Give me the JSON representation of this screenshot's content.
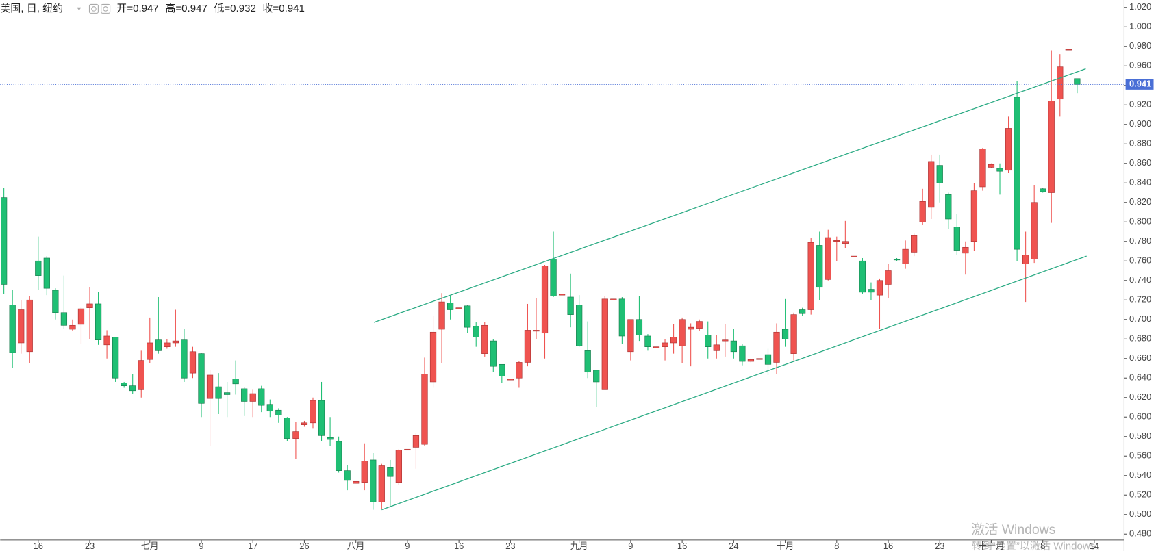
{
  "chart_data": {
    "type": "candlestick",
    "title": "美国, 日, 纽约",
    "ohlc_legend": [
      "开=0.947",
      "高=0.947",
      "低=0.932",
      "收=0.941"
    ],
    "up_color": "#ef5350",
    "down_color": "#1fbf74",
    "categories": [
      null,
      null,
      null,
      null,
      "16",
      null,
      null,
      null,
      null,
      null,
      "23",
      null,
      null,
      null,
      null,
      null,
      null,
      "七月",
      null,
      null,
      null,
      null,
      null,
      "9",
      null,
      null,
      null,
      null,
      null,
      "17",
      null,
      null,
      null,
      null,
      null,
      "26",
      null,
      null,
      null,
      null,
      null,
      "八月",
      null,
      null,
      null,
      null,
      null,
      "9",
      null,
      null,
      null,
      null,
      null,
      "16",
      null,
      null,
      null,
      null,
      null,
      "23",
      null,
      null,
      null,
      null,
      null,
      null,
      null,
      "九月",
      null,
      null,
      null,
      null,
      null,
      "9",
      null,
      null,
      null,
      null,
      null,
      "16",
      null,
      null,
      null,
      null,
      null,
      "24",
      null,
      null,
      null,
      null,
      null,
      "十月",
      null,
      null,
      null,
      null,
      null,
      "8",
      null,
      null,
      null,
      null,
      null,
      "16",
      null,
      null,
      null,
      null,
      null,
      "23",
      null,
      null,
      null,
      null,
      null,
      "十一月",
      null,
      null,
      null,
      null,
      null,
      "8",
      null,
      null,
      null,
      null,
      null,
      "14"
    ],
    "open": [
      0.825,
      0.715,
      0.676,
      0.667,
      0.76,
      0.763,
      0.73,
      0.707,
      0.69,
      0.695,
      0.712,
      0.716,
      0.674,
      0.682,
      0.635,
      0.632,
      0.628,
      0.659,
      0.679,
      0.672,
      0.676,
      0.679,
      0.645,
      0.665,
      0.619,
      0.631,
      0.625,
      0.639,
      0.629,
      0.616,
      0.629,
      0.613,
      0.607,
      0.599,
      0.578,
      0.592,
      0.594,
      0.617,
      0.579,
      0.575,
      0.545,
      0.532,
      0.533,
      0.556,
      0.513,
      0.548,
      0.533,
      0.566,
      0.569,
      0.572,
      0.636,
      0.69,
      0.717,
      0.711,
      0.714,
      0.693,
      0.665,
      0.678,
      0.654,
      0.638,
      0.64,
      0.656,
      0.688,
      0.686,
      0.762,
      0.725,
      0.723,
      0.715,
      0.668,
      0.648,
      0.628,
      0.72,
      0.721,
      0.667,
      0.7,
      0.683,
      0.671,
      0.672,
      0.676,
      0.673,
      0.69,
      0.691,
      0.684,
      0.668,
      0.678,
      0.678,
      0.673,
      0.657,
      0.659,
      0.664,
      0.656,
      0.69,
      0.665,
      0.71,
      0.71,
      0.776,
      0.741,
      0.78,
      0.778,
      0.764,
      0.76,
      0.731,
      0.725,
      0.736,
      0.762,
      0.757,
      0.769,
      0.8,
      0.815,
      0.858,
      0.828,
      0.795,
      0.768,
      0.78,
      0.836,
      0.856,
      0.855,
      0.853,
      0.928,
      0.757,
      0.762,
      0.834,
      0.83,
      0.926,
      0.977,
      0.947,
      null,
      null
    ],
    "high": [
      0.835,
      0.73,
      0.72,
      0.724,
      0.785,
      0.765,
      0.732,
      0.745,
      0.7,
      0.713,
      0.733,
      0.728,
      0.689,
      0.682,
      0.636,
      0.644,
      0.668,
      0.702,
      0.723,
      0.68,
      0.71,
      0.69,
      0.672,
      0.666,
      0.648,
      0.645,
      0.636,
      0.658,
      0.631,
      0.628,
      0.632,
      0.618,
      0.609,
      0.6,
      0.595,
      0.596,
      0.62,
      0.636,
      0.6,
      0.58,
      0.551,
      0.534,
      0.573,
      0.563,
      0.552,
      0.556,
      0.567,
      0.567,
      0.584,
      0.661,
      0.704,
      0.727,
      0.724,
      0.712,
      0.715,
      0.697,
      0.697,
      0.68,
      0.654,
      0.639,
      0.657,
      0.716,
      0.722,
      0.756,
      0.79,
      0.726,
      0.747,
      0.725,
      0.698,
      0.648,
      0.724,
      0.721,
      0.723,
      0.7,
      0.724,
      0.685,
      0.672,
      0.68,
      0.695,
      0.702,
      0.696,
      0.7,
      0.698,
      0.684,
      0.695,
      0.69,
      0.675,
      0.66,
      0.66,
      0.67,
      0.696,
      0.721,
      0.707,
      0.712,
      0.784,
      0.79,
      0.792,
      0.785,
      0.801,
      0.765,
      0.763,
      0.738,
      0.742,
      0.757,
      0.763,
      0.781,
      0.788,
      0.834,
      0.869,
      0.869,
      0.83,
      0.808,
      0.78,
      0.84,
      0.876,
      0.86,
      0.86,
      0.908,
      0.944,
      0.79,
      0.838,
      0.835,
      0.976,
      0.972,
      0.977,
      0.947,
      null,
      null
    ],
    "low": [
      0.726,
      0.65,
      0.665,
      0.655,
      0.73,
      0.725,
      0.7,
      0.69,
      0.688,
      0.675,
      0.68,
      0.674,
      0.66,
      0.636,
      0.63,
      0.624,
      0.62,
      0.655,
      0.665,
      0.67,
      0.672,
      0.636,
      0.64,
      0.6,
      0.57,
      0.603,
      0.6,
      0.623,
      0.601,
      0.6,
      0.605,
      0.6,
      0.594,
      0.575,
      0.557,
      0.59,
      0.588,
      0.575,
      0.57,
      0.543,
      0.525,
      0.532,
      0.525,
      0.505,
      0.506,
      0.508,
      0.53,
      0.566,
      0.547,
      0.57,
      0.63,
      0.655,
      0.7,
      0.711,
      0.686,
      0.672,
      0.662,
      0.646,
      0.635,
      0.638,
      0.63,
      0.652,
      0.68,
      0.66,
      0.723,
      0.725,
      0.692,
      0.672,
      0.64,
      0.61,
      0.628,
      0.72,
      0.675,
      0.658,
      0.678,
      0.668,
      0.671,
      0.658,
      0.665,
      0.655,
      0.652,
      0.688,
      0.66,
      0.66,
      0.662,
      0.66,
      0.653,
      0.656,
      0.659,
      0.643,
      0.644,
      0.672,
      0.658,
      0.704,
      0.705,
      0.72,
      0.74,
      0.76,
      0.773,
      0.764,
      0.726,
      0.72,
      0.69,
      0.722,
      0.76,
      0.752,
      0.765,
      0.797,
      0.803,
      0.82,
      0.793,
      0.766,
      0.746,
      0.77,
      0.832,
      0.855,
      0.828,
      0.85,
      0.76,
      0.718,
      0.758,
      0.83,
      0.799,
      0.908,
      0.977,
      0.932,
      null,
      null
    ],
    "close": [
      0.736,
      0.666,
      0.71,
      0.72,
      0.745,
      0.732,
      0.707,
      0.694,
      0.694,
      0.711,
      0.716,
      0.679,
      0.683,
      0.64,
      0.632,
      0.627,
      0.658,
      0.676,
      0.668,
      0.676,
      0.678,
      0.64,
      0.667,
      0.614,
      0.643,
      0.619,
      0.623,
      0.634,
      0.616,
      0.624,
      0.612,
      0.606,
      0.602,
      0.578,
      0.585,
      0.594,
      0.617,
      0.581,
      0.577,
      0.545,
      0.535,
      0.534,
      0.555,
      0.513,
      0.55,
      0.539,
      0.566,
      0.567,
      0.581,
      0.644,
      0.687,
      0.718,
      0.71,
      0.712,
      0.692,
      0.682,
      0.694,
      0.652,
      0.642,
      0.639,
      0.656,
      0.689,
      0.689,
      0.755,
      0.724,
      0.726,
      0.705,
      0.673,
      0.646,
      0.636,
      0.721,
      0.721,
      0.683,
      0.7,
      0.684,
      0.672,
      0.672,
      0.676,
      0.682,
      0.7,
      0.692,
      0.698,
      0.672,
      0.674,
      0.679,
      0.667,
      0.657,
      0.659,
      0.66,
      0.654,
      0.687,
      0.68,
      0.705,
      0.706,
      0.779,
      0.733,
      0.784,
      0.781,
      0.78,
      0.765,
      0.728,
      0.728,
      0.74,
      0.75,
      0.761,
      0.772,
      0.786,
      0.821,
      0.862,
      0.84,
      0.803,
      0.771,
      0.774,
      0.832,
      0.875,
      0.859,
      0.852,
      0.896,
      0.772,
      0.766,
      0.82,
      0.831,
      0.924,
      0.959,
      0.977,
      0.941,
      null,
      null
    ],
    "ylim": [
      0.48,
      1.02
    ],
    "yticks": [
      {
        "value": 0.48,
        "label": "0.480"
      },
      {
        "value": 0.5,
        "label": "0.500"
      },
      {
        "value": 0.52,
        "label": "0.520"
      },
      {
        "value": 0.54,
        "label": "0.540"
      },
      {
        "value": 0.56,
        "label": "0.560"
      },
      {
        "value": 0.58,
        "label": "0.580"
      },
      {
        "value": 0.6,
        "label": "0.600"
      },
      {
        "value": 0.62,
        "label": "0.620"
      },
      {
        "value": 0.64,
        "label": "0.640"
      },
      {
        "value": 0.66,
        "label": "0.660"
      },
      {
        "value": 0.68,
        "label": "0.680"
      },
      {
        "value": 0.7,
        "label": "0.700"
      },
      {
        "value": 0.72,
        "label": "0.720"
      },
      {
        "value": 0.74,
        "label": "0.740"
      },
      {
        "value": 0.76,
        "label": "0.760"
      },
      {
        "value": 0.78,
        "label": "0.780"
      },
      {
        "value": 0.8,
        "label": "0.800"
      },
      {
        "value": 0.82,
        "label": "0.820"
      },
      {
        "value": 0.84,
        "label": "0.840"
      },
      {
        "value": 0.86,
        "label": "0.860"
      },
      {
        "value": 0.88,
        "label": "0.880"
      },
      {
        "value": 0.9,
        "label": "0.900"
      },
      {
        "value": 0.92,
        "label": "0.920"
      },
      {
        "value": 0.94,
        "label": "0.940"
      },
      {
        "value": 0.96,
        "label": "0.960"
      },
      {
        "value": 0.98,
        "label": "0.980"
      },
      {
        "value": 1.0,
        "label": "1.000"
      },
      {
        "value": 1.02,
        "label": "1.020"
      }
    ],
    "last_price": {
      "value": 0.941,
      "label": "0.941"
    },
    "last_price_color": "#4a6fd6",
    "trendline_color": "#2bab84",
    "trendlines": [
      {
        "x": [
          43.1,
          126.0
        ],
        "values": [
          0.697,
          0.957
        ]
      },
      {
        "x": [
          44.0,
          126.1
        ],
        "values": [
          0.505,
          0.765
        ]
      }
    ],
    "grid": false
  },
  "watermark": [
    "激活 Windows",
    "转到“设置”以激活 Windows。"
  ]
}
